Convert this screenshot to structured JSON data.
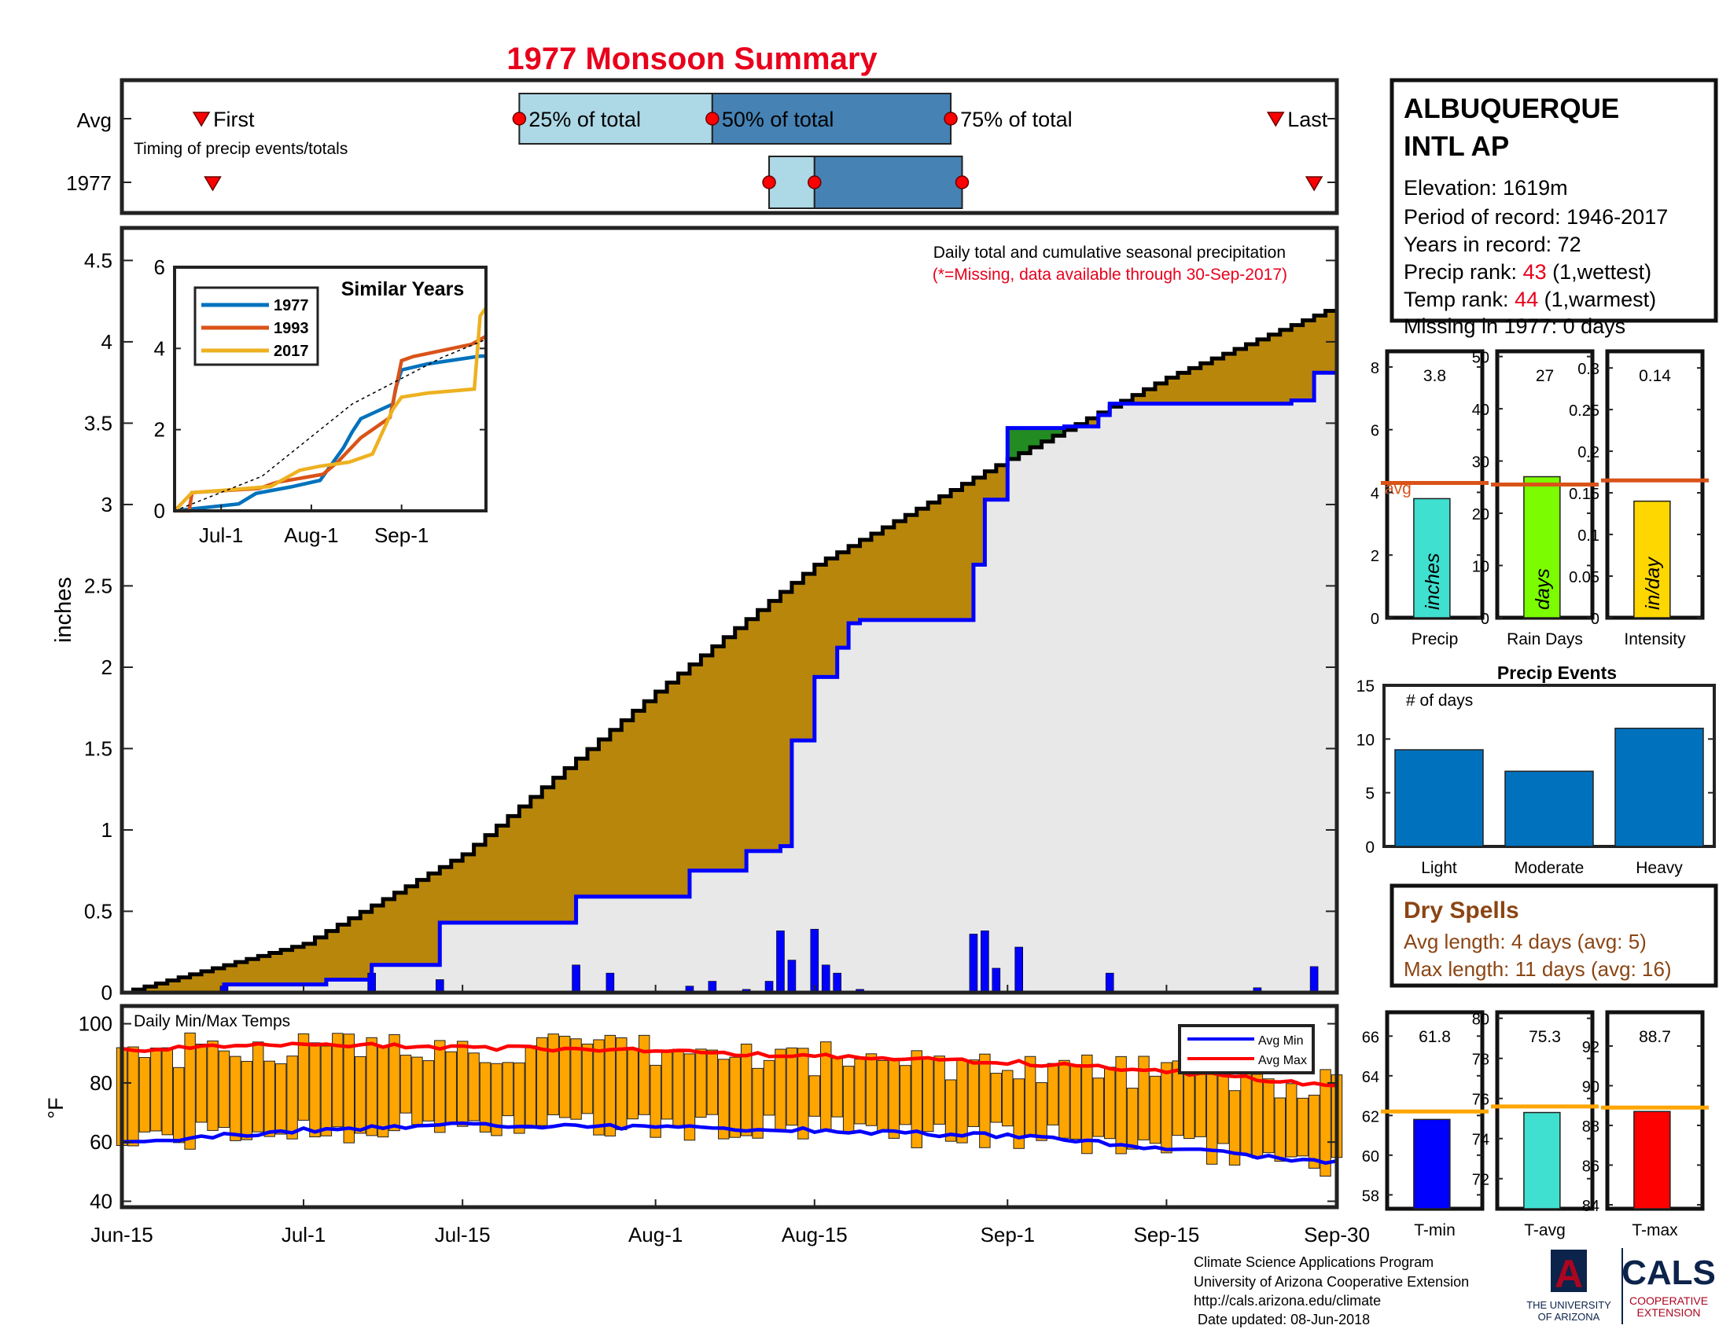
{
  "title": "1977 Monsoon Summary",
  "timing": {
    "row_labels": [
      "Avg",
      "1977"
    ],
    "caption": "Timing of precip events/totals",
    "first_label": "First",
    "last_label": "Last",
    "p25_label": "25% of total",
    "p50_label": "50% of total",
    "p75_label": "75% of total",
    "avg": {
      "first": "2017-06-22",
      "p25": "2017-07-20",
      "p50": "2017-08-06",
      "p75": "2017-08-27",
      "last": "2017-09-26"
    },
    "y1977": {
      "first": "2017-06-23",
      "p25": "2017-08-11",
      "p50": "2017-08-15",
      "p75": "2017-08-28",
      "last": "2017-09-28"
    },
    "colors": {
      "light": "#ADD8E6",
      "dark": "#4682B4",
      "marker": "#FF0000"
    }
  },
  "station": {
    "name_line1": "ALBUQUERQUE",
    "name_line2": "INTL AP",
    "elevation": "Elevation: 1619m",
    "period": "Period of record: 1946-2017",
    "years": "Years in record: 72",
    "precip_rank_prefix": "Precip rank: ",
    "precip_rank": "43",
    "precip_rank_suffix": " (1,wettest)",
    "temp_rank_prefix": "Temp rank: ",
    "temp_rank": "44",
    "temp_rank_suffix": " (1,warmest)",
    "missing": "Missing in 1977: 0 days"
  },
  "main_chart": {
    "ylabel": "inches",
    "note": "Daily total and cumulative seasonal precipitation",
    "note_missing": "(*=Missing, data available through 30-Sep-2017)",
    "x_ticks": [
      "Jun-15",
      "Jul-1",
      "Jul-15",
      "Aug-1",
      "Aug-15",
      "Sep-1",
      "Sep-15",
      "Sep-30"
    ],
    "y_ticks": [
      "0",
      "0.5",
      "1",
      "1.5",
      "2",
      "2.5",
      "3",
      "3.5",
      "4",
      "4.5"
    ]
  },
  "inset": {
    "title": "Similar Years",
    "x_ticks": [
      "Jul-1",
      "Aug-1",
      "Sep-1"
    ],
    "y_ticks": [
      "0",
      "2",
      "4",
      "6"
    ],
    "legend": [
      "1977",
      "1993",
      "2017"
    ]
  },
  "bar_panels": {
    "avg_label": "avg",
    "precip": {
      "value_text": "3.8",
      "unit": "inches",
      "label": "Precip",
      "y_ticks": [
        "0",
        "2",
        "4",
        "6",
        "8"
      ]
    },
    "rain_days": {
      "value_text": "27",
      "unit": "days",
      "label": "Rain Days",
      "y_ticks": [
        "0",
        "10",
        "20",
        "30",
        "40",
        "50"
      ]
    },
    "intensity": {
      "value_text": "0.14",
      "unit": "in/day",
      "label": "Intensity",
      "y_ticks": [
        "0",
        "0.05",
        "0.1",
        "0.15",
        "0.2",
        "0.25",
        "0.3"
      ]
    }
  },
  "events": {
    "title": "Precip Events",
    "ylabel": "# of days",
    "y_ticks": [
      "0",
      "5",
      "10",
      "15"
    ]
  },
  "dry_spells": {
    "title": "Dry Spells",
    "avg_length": "Avg length: 4 days (avg: 5)",
    "max_length": "Max length: 11 days (avg: 16)"
  },
  "temps_panel": {
    "label": "Daily Min/Max Temps",
    "ylabel": "°F",
    "y_ticks": [
      "40",
      "60",
      "80",
      "100"
    ],
    "legend": [
      "Avg Min",
      "Avg Max"
    ]
  },
  "temp_bars": {
    "tmin": {
      "value_text": "61.8",
      "label": "T-min",
      "y_ticks": [
        "58",
        "60",
        "62",
        "64",
        "66"
      ]
    },
    "tavg": {
      "value_text": "75.3",
      "label": "T-avg",
      "y_ticks": [
        "72",
        "74",
        "76",
        "78",
        "80"
      ]
    },
    "tmax": {
      "value_text": "88.7",
      "label": "T-max",
      "y_ticks": [
        "84",
        "86",
        "88",
        "90",
        "92"
      ]
    }
  },
  "footer": {
    "line1": "Climate Science Applications Program",
    "line2": "University of Arizona Cooperative Extension",
    "line3": "http://cals.arizona.edu/climate",
    "line4": " Date updated: 08-Jun-2018",
    "ua_line1": "THE UNIVERSITY",
    "ua_line2": "OF ARIZONA",
    "cals": "CALS",
    "cals_line1": "COOPERATIVE",
    "cals_line2": "EXTENSION",
    "ua_letter": "A"
  },
  "chart_data": [
    {
      "type": "area",
      "title": "Daily total and cumulative seasonal precipitation",
      "ylabel": "inches",
      "ylim": [
        0,
        4.7
      ],
      "x_range": [
        "2017-06-15",
        "2017-09-30"
      ],
      "series": [
        {
          "name": "average cumulative",
          "color": "#B8860B",
          "x": [
            "2017-06-15",
            "2017-07-01",
            "2017-07-15",
            "2017-08-01",
            "2017-08-15",
            "2017-09-01",
            "2017-09-15",
            "2017-09-30"
          ],
          "y": [
            0.0,
            0.3,
            0.85,
            1.85,
            2.63,
            3.28,
            3.78,
            4.22
          ]
        },
        {
          "name": "1977 cumulative",
          "color": "#0000FF",
          "x": [
            "2017-06-15",
            "2017-06-24",
            "2017-07-03",
            "2017-07-07",
            "2017-07-13",
            "2017-07-20",
            "2017-07-25",
            "2017-08-04",
            "2017-08-09",
            "2017-08-12",
            "2017-08-13",
            "2017-08-15",
            "2017-08-17",
            "2017-08-18",
            "2017-08-19",
            "2017-08-21",
            "2017-08-29",
            "2017-08-30",
            "2017-08-31",
            "2017-09-01",
            "2017-09-06",
            "2017-09-09",
            "2017-09-10",
            "2017-09-26",
            "2017-09-28",
            "2017-09-30"
          ],
          "y": [
            0.0,
            0.05,
            0.08,
            0.17,
            0.43,
            0.43,
            0.59,
            0.75,
            0.87,
            0.9,
            1.55,
            1.94,
            2.12,
            2.27,
            2.29,
            2.29,
            2.63,
            3.03,
            3.03,
            3.47,
            3.48,
            3.55,
            3.62,
            3.64,
            3.81,
            3.81
          ]
        }
      ],
      "daily_bars_1977": {
        "x": [
          "2017-06-24",
          "2017-07-07",
          "2017-07-13",
          "2017-07-25",
          "2017-07-28",
          "2017-08-04",
          "2017-08-06",
          "2017-08-09",
          "2017-08-11",
          "2017-08-12",
          "2017-08-13",
          "2017-08-15",
          "2017-08-16",
          "2017-08-17",
          "2017-08-19",
          "2017-08-29",
          "2017-08-30",
          "2017-08-31",
          "2017-09-02",
          "2017-09-10",
          "2017-09-23",
          "2017-09-28"
        ],
        "y": [
          0.04,
          0.12,
          0.08,
          0.17,
          0.12,
          0.04,
          0.07,
          0.02,
          0.07,
          0.38,
          0.2,
          0.39,
          0.17,
          0.12,
          0.02,
          0.36,
          0.38,
          0.15,
          0.28,
          0.12,
          0.03,
          0.16
        ]
      },
      "fill_colors": {
        "below_avg": "#B8860B",
        "above_avg": "#228B22",
        "base": "#E8E8E8"
      }
    },
    {
      "type": "line",
      "title": "Similar Years",
      "xlim": [
        "2017-06-15",
        "2017-09-30"
      ],
      "ylim": [
        0,
        6
      ],
      "series": [
        {
          "name": "1977",
          "color": "#0072BD",
          "x": [
            "2017-06-15",
            "2017-07-07",
            "2017-07-13",
            "2017-07-25",
            "2017-08-04",
            "2017-08-12",
            "2017-08-15",
            "2017-08-18",
            "2017-08-29",
            "2017-08-30",
            "2017-09-01",
            "2017-09-10",
            "2017-09-28",
            "2017-09-30"
          ],
          "y": [
            0.0,
            0.17,
            0.43,
            0.59,
            0.75,
            1.55,
            1.94,
            2.27,
            2.63,
            3.03,
            3.47,
            3.62,
            3.81,
            3.81
          ]
        },
        {
          "name": "1993",
          "color": "#D95319",
          "x": [
            "2017-06-15",
            "2017-06-20",
            "2017-06-21",
            "2017-07-14",
            "2017-07-20",
            "2017-08-05",
            "2017-08-10",
            "2017-08-18",
            "2017-08-28",
            "2017-09-01",
            "2017-09-05",
            "2017-09-15",
            "2017-09-25",
            "2017-09-30"
          ],
          "y": [
            0.0,
            0.0,
            0.45,
            0.55,
            0.7,
            0.9,
            1.2,
            1.8,
            2.3,
            3.7,
            3.8,
            3.95,
            4.1,
            4.3
          ]
        },
        {
          "name": "2017",
          "color": "#EDB120",
          "x": [
            "2017-06-15",
            "2017-06-21",
            "2017-07-01",
            "2017-07-18",
            "2017-07-28",
            "2017-08-04",
            "2017-08-14",
            "2017-08-22",
            "2017-08-29",
            "2017-09-01",
            "2017-09-10",
            "2017-09-26",
            "2017-09-28",
            "2017-09-30"
          ],
          "y": [
            0.0,
            0.45,
            0.5,
            0.6,
            1.0,
            1.1,
            1.2,
            1.4,
            2.5,
            2.8,
            2.9,
            3.0,
            4.8,
            5.0
          ]
        },
        {
          "name": "average",
          "color": "#000000",
          "x": [
            "2017-06-15",
            "2017-07-15",
            "2017-08-15",
            "2017-09-15",
            "2017-09-30"
          ],
          "y": [
            0.0,
            0.85,
            2.63,
            3.78,
            4.22
          ]
        }
      ]
    },
    {
      "type": "bar",
      "categories": [
        "Precip",
        "Rain Days",
        "Intensity"
      ],
      "series": [
        {
          "name": "1977",
          "values": [
            3.8,
            27,
            0.14
          ]
        },
        {
          "name": "avg",
          "values": [
            4.3,
            25.5,
            0.165
          ]
        }
      ],
      "ylims": [
        [
          0,
          8.5
        ],
        [
          0,
          51
        ],
        [
          0,
          0.32
        ]
      ],
      "colors": [
        "#40E0D0",
        "#7CFC00",
        "#FFD700"
      ]
    },
    {
      "type": "bar",
      "title": "Precip Events",
      "ylabel": "# of days",
      "categories": [
        "Light",
        "Moderate",
        "Heavy"
      ],
      "values": [
        9,
        7,
        11
      ],
      "ylim": [
        0,
        15
      ],
      "color": "#0072BD"
    },
    {
      "type": "bar",
      "title": "Daily Min/Max Temps",
      "ylabel": "°F",
      "ylim": [
        38,
        106
      ],
      "x_range": [
        "2017-06-15",
        "2017-09-30"
      ],
      "series": [
        {
          "name": "Avg Min",
          "color": "#0000FF",
          "x": [
            "2017-06-15",
            "2017-07-01",
            "2017-07-15",
            "2017-08-01",
            "2017-08-15",
            "2017-09-01",
            "2017-09-15",
            "2017-09-30"
          ],
          "y": [
            60,
            64,
            66,
            65,
            64,
            62,
            58,
            53
          ]
        },
        {
          "name": "Avg Max",
          "color": "#FF0000",
          "x": [
            "2017-06-15",
            "2017-07-01",
            "2017-07-15",
            "2017-08-01",
            "2017-08-15",
            "2017-09-01",
            "2017-09-15",
            "2017-09-30"
          ],
          "y": [
            91,
            93,
            92,
            91,
            89,
            87,
            84,
            79
          ]
        }
      ],
      "bar_color": "#FFA500"
    },
    {
      "type": "bar",
      "categories": [
        "T-min",
        "T-avg",
        "T-max"
      ],
      "series": [
        {
          "name": "1977",
          "values": [
            61.8,
            75.3,
            88.7
          ]
        },
        {
          "name": "avg",
          "values": [
            62.2,
            75.6,
            88.9
          ]
        }
      ],
      "ylims": [
        [
          57.3,
          67.2
        ],
        [
          70.5,
          80.3
        ],
        [
          83.8,
          93.7
        ]
      ],
      "colors": [
        "#0000FF",
        "#40E0D0",
        "#FF0000"
      ]
    }
  ]
}
